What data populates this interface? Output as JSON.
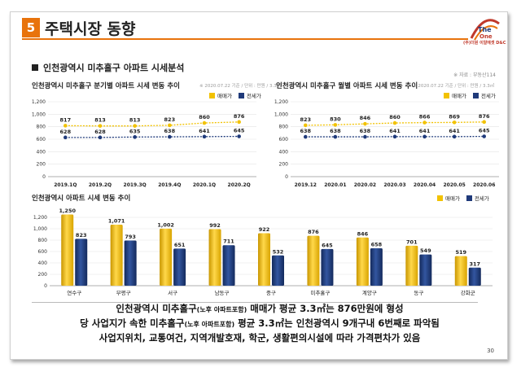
{
  "header": {
    "section_number": "5",
    "title": "주택시장 동향",
    "logo_text": "(주)더원 이알에셋 D&C"
  },
  "subtitle": "인천광역시 미추홀구 아파트 시세분석",
  "source": "※ 자료 : 부동산114",
  "colors": {
    "accent": "#e8730c",
    "sale": "#f2c200",
    "lease": "#1f3a7a"
  },
  "chart_data": [
    {
      "type": "line",
      "title": "인천광역시 미추홀구 분기별 아파트 시세 변동 추이",
      "note": "※ 2020.07.22 기준 / 단위 : 만원 / 3.3㎡",
      "categories": [
        "2019.1Q",
        "2019.2Q",
        "2019.3Q",
        "2019.4Q",
        "2020.1Q",
        "2020.2Q"
      ],
      "series": [
        {
          "name": "매매가",
          "values": [
            817,
            813,
            813,
            823,
            860,
            876
          ]
        },
        {
          "name": "전세가",
          "values": [
            628,
            628,
            635,
            638,
            641,
            645
          ]
        }
      ],
      "ylim": [
        0,
        1200
      ],
      "yticks": [
        "0",
        "200",
        "400",
        "600",
        "800",
        "1,000",
        "1,200"
      ],
      "grid": true,
      "legend": "top-right"
    },
    {
      "type": "line",
      "title": "인천광역시 미추홀구 월별 아파트 시세 변동 추이",
      "note": "※ 2020.07.22 기준 / 단위 : 만원 / 3.3㎡",
      "categories": [
        "2019.12",
        "2020.01",
        "2020.02",
        "2020.03",
        "2020.04",
        "2020.05",
        "2020.06"
      ],
      "series": [
        {
          "name": "매매가",
          "values": [
            823,
            830,
            846,
            860,
            866,
            869,
            876
          ]
        },
        {
          "name": "전세가",
          "values": [
            638,
            638,
            638,
            641,
            641,
            641,
            645
          ]
        }
      ],
      "ylim": [
        0,
        1200
      ],
      "yticks": [
        "0",
        "200",
        "400",
        "600",
        "800",
        "1,000",
        "1,200"
      ],
      "grid": true,
      "legend": "top-right"
    },
    {
      "type": "bar",
      "title": "인천광역시 아파트 시세 변동 추이",
      "categories": [
        "연수구",
        "부평구",
        "서구",
        "남동구",
        "중구",
        "미추홀구",
        "계양구",
        "동구",
        "강화군"
      ],
      "series": [
        {
          "name": "매매가",
          "values": [
            1250,
            1071,
            1002,
            992,
            922,
            876,
            846,
            701,
            519
          ]
        },
        {
          "name": "전세가",
          "values": [
            823,
            793,
            651,
            711,
            532,
            645,
            658,
            549,
            317
          ]
        }
      ],
      "ylim": [
        0,
        1400
      ],
      "yticks": [
        "0",
        "200",
        "400",
        "600",
        "800",
        "1,000",
        "1,200"
      ],
      "grid": true,
      "legend": "top-right"
    }
  ],
  "summary": {
    "line1_a": "인천광역시 미추홀구",
    "line1_b": "(노후 아파트포함)",
    "line1_c": " 매매가 평균 3.3㎡는 876만원에 형성",
    "line2_a": "당 사업지가 속한 미추홀구",
    "line2_b": "(노후 아파트포함)",
    "line2_c": " 평균 3.3㎡는 인천광역시 9개구내 6번째로 파악됨",
    "line3": "사업지위치, 교통여건, 지역개발호재, 학군, 생활편의시설에 따라 가격편차가 있음"
  },
  "page_number": "30"
}
